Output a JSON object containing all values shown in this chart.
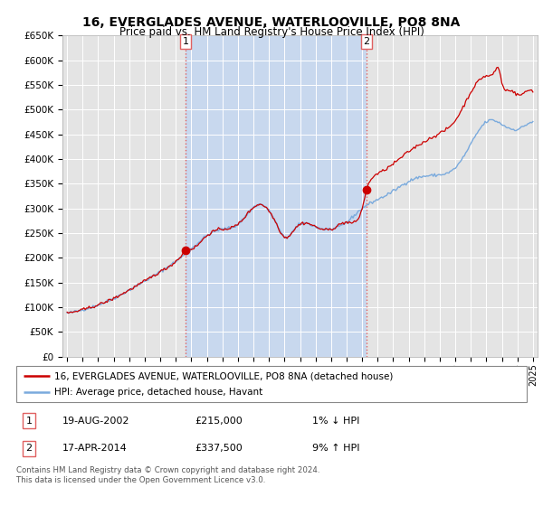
{
  "title": "16, EVERGLADES AVENUE, WATERLOOVILLE, PO8 8NA",
  "subtitle": "Price paid vs. HM Land Registry's House Price Index (HPI)",
  "background_color": "#dce9f5",
  "outside_bg_color": "#e8e8e8",
  "shaded_region_color": "#c8d8ee",
  "ylim": [
    0,
    650000
  ],
  "yticks": [
    0,
    50000,
    100000,
    150000,
    200000,
    250000,
    300000,
    350000,
    400000,
    450000,
    500000,
    550000,
    600000,
    650000
  ],
  "x_start_year": 1995,
  "x_end_year": 2025,
  "transaction1_x": 2002.635,
  "transaction1_price": 215000,
  "transaction2_x": 2014.29,
  "transaction2_price": 337500,
  "vline_color": "#e06060",
  "marker_color": "#cc0000",
  "hpi_line_color": "#7aaadd",
  "price_line_color": "#cc0000",
  "legend_label1": "16, EVERGLADES AVENUE, WATERLOOVILLE, PO8 8NA (detached house)",
  "legend_label2": "HPI: Average price, detached house, Havant",
  "annotation1": {
    "num": "1",
    "date_str": "19-AUG-2002",
    "price_str": "£215,000",
    "hpi_str": "1% ↓ HPI"
  },
  "annotation2": {
    "num": "2",
    "date_str": "17-APR-2014",
    "price_str": "£337,500",
    "hpi_str": "9% ↑ HPI"
  },
  "footer": "Contains HM Land Registry data © Crown copyright and database right 2024.\nThis data is licensed under the Open Government Licence v3.0."
}
